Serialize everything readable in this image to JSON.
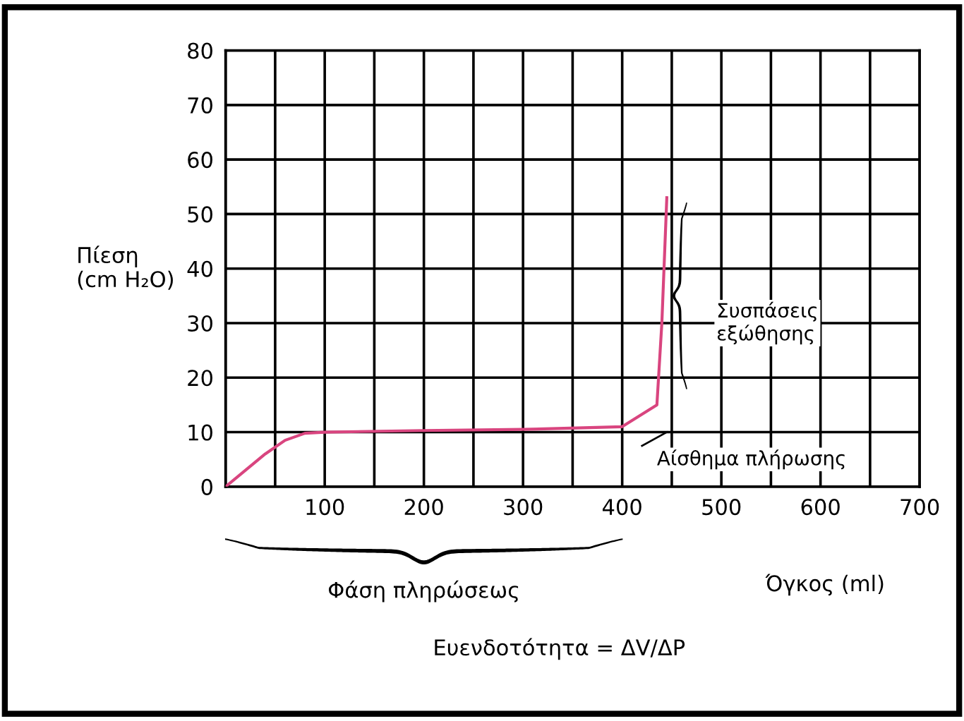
{
  "chart_data": {
    "type": "line",
    "xlabel": "Όγκος (ml)",
    "ylabel": "Πίεση\n(cm H₂O)",
    "series": [
      {
        "color": "#d9457f",
        "x": [
          0,
          20,
          40,
          60,
          80,
          100,
          200,
          300,
          400,
          435,
          440,
          445
        ],
        "values": [
          0,
          3,
          6,
          8.5,
          9.8,
          10,
          10.3,
          10.5,
          11,
          15,
          30,
          53
        ]
      }
    ],
    "xlim": [
      0,
      700
    ],
    "ylim": [
      0,
      80
    ],
    "xticks": [
      {
        "value": 0,
        "label": null
      },
      {
        "value": 50,
        "label": null
      },
      100,
      {
        "value": 150,
        "label": null
      },
      200,
      {
        "value": 250,
        "label": null
      },
      300,
      {
        "value": 350,
        "label": null
      },
      400,
      {
        "value": 450,
        "label": null
      },
      500,
      {
        "value": 550,
        "label": null
      },
      600,
      {
        "value": 650,
        "label": null
      },
      700
    ],
    "yticks": [
      0,
      10,
      20,
      30,
      40,
      50,
      60,
      70,
      80
    ],
    "grid": true,
    "marker": "none",
    "line_style": "solid",
    "legend": false,
    "annotations": [
      {
        "text": "Συσπάσεις\nεξώθησης",
        "x": 445,
        "y": 35
      },
      "Αίσθημα πλήρωσης",
      "Φάση πληρώσεως",
      "Ευενδοτότητα = ΔV/ΔP"
    ]
  }
}
